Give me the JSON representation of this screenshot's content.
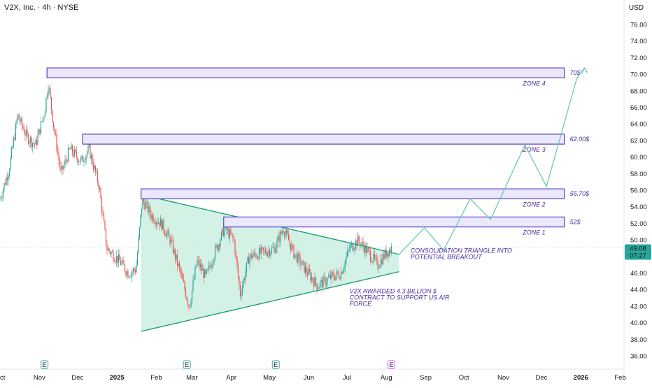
{
  "header": {
    "symbol": "V2X, Inc. · 4h · NYSE",
    "currency": "USD"
  },
  "price_label": {
    "price": "49.08",
    "countdown": "07:27",
    "color": "#26a69a"
  },
  "colors": {
    "up": "#26a69a",
    "down": "#ef5350",
    "zone_border": "#5b3fc4",
    "zone_fill": "#ece8fb",
    "triangle": "#1fa07a",
    "triangle_fill": "#cdeee2",
    "projection": "#6cc9b4"
  },
  "earnings_badges": [
    {
      "label": "E",
      "date": "2024-11-05",
      "color": "#26a69a"
    },
    {
      "label": "E",
      "date": "2025-02-25",
      "color": "#26a69a"
    },
    {
      "label": "E",
      "date": "2025-05-06",
      "color": "#26a69a"
    },
    {
      "label": "E",
      "date": "2025-08-05",
      "color": "#e040fb"
    }
  ],
  "chart_data": {
    "type": "candlestick",
    "x_axis": {
      "range": [
        "2024-10-01",
        "2026-02-04"
      ],
      "tick_labels": [
        {
          "date": "2024-10-01",
          "label": "Oct"
        },
        {
          "date": "2024-11-01",
          "label": "Nov"
        },
        {
          "date": "2024-12-01",
          "label": "Dec"
        },
        {
          "date": "2025-01-01",
          "label": "2025"
        },
        {
          "date": "2025-02-01",
          "label": "Feb"
        },
        {
          "date": "2025-03-01",
          "label": "Mar"
        },
        {
          "date": "2025-04-01",
          "label": "Apr"
        },
        {
          "date": "2025-05-01",
          "label": "May"
        },
        {
          "date": "2025-06-01",
          "label": "Jun"
        },
        {
          "date": "2025-07-01",
          "label": "Jul"
        },
        {
          "date": "2025-08-01",
          "label": "Aug"
        },
        {
          "date": "2025-09-01",
          "label": "Sep"
        },
        {
          "date": "2025-10-01",
          "label": "Oct"
        },
        {
          "date": "2025-11-01",
          "label": "Nov"
        },
        {
          "date": "2025-12-01",
          "label": "Dec"
        },
        {
          "date": "2026-01-01",
          "label": "2026"
        },
        {
          "date": "2026-02-01",
          "label": "Feb"
        }
      ]
    },
    "y_axis": {
      "range": [
        35,
        78
      ],
      "unit": "USD",
      "ticks": [
        "76.00",
        "74.00",
        "72.00",
        "70.00",
        "68.00",
        "66.00",
        "64.00",
        "62.00",
        "60.00",
        "58.00",
        "56.00",
        "54.00",
        "52.00",
        "50.00",
        "48.00",
        "46.00",
        "44.00",
        "42.00",
        "40.00",
        "38.00",
        "36.00"
      ]
    },
    "price_path": [
      {
        "date": "2024-10-01",
        "price": 55.0
      },
      {
        "date": "2024-10-08",
        "price": 58.5
      },
      {
        "date": "2024-10-15",
        "price": 65.0
      },
      {
        "date": "2024-10-22",
        "price": 62.5
      },
      {
        "date": "2024-10-29",
        "price": 61.5
      },
      {
        "date": "2024-11-05",
        "price": 65.5
      },
      {
        "date": "2024-11-08",
        "price": 69.0
      },
      {
        "date": "2024-11-12",
        "price": 64.0
      },
      {
        "date": "2024-11-18",
        "price": 58.0
      },
      {
        "date": "2024-11-25",
        "price": 61.0
      },
      {
        "date": "2024-12-04",
        "price": 59.5
      },
      {
        "date": "2024-12-10",
        "price": 61.0
      },
      {
        "date": "2024-12-18",
        "price": 56.5
      },
      {
        "date": "2024-12-24",
        "price": 49.0
      },
      {
        "date": "2025-01-03",
        "price": 47.5
      },
      {
        "date": "2025-01-10",
        "price": 46.0
      },
      {
        "date": "2025-01-16",
        "price": 46.5
      },
      {
        "date": "2025-01-21",
        "price": 55.0
      },
      {
        "date": "2025-01-28",
        "price": 53.0
      },
      {
        "date": "2025-02-05",
        "price": 52.0
      },
      {
        "date": "2025-02-12",
        "price": 50.0
      },
      {
        "date": "2025-02-20",
        "price": 46.0
      },
      {
        "date": "2025-02-27",
        "price": 42.0
      },
      {
        "date": "2025-03-05",
        "price": 47.5
      },
      {
        "date": "2025-03-12",
        "price": 45.5
      },
      {
        "date": "2025-03-20",
        "price": 49.0
      },
      {
        "date": "2025-03-27",
        "price": 51.5
      },
      {
        "date": "2025-04-03",
        "price": 50.0
      },
      {
        "date": "2025-04-08",
        "price": 43.5
      },
      {
        "date": "2025-04-15",
        "price": 48.0
      },
      {
        "date": "2025-04-25",
        "price": 48.5
      },
      {
        "date": "2025-05-05",
        "price": 49.0
      },
      {
        "date": "2025-05-12",
        "price": 51.5
      },
      {
        "date": "2025-05-20",
        "price": 48.5
      },
      {
        "date": "2025-05-29",
        "price": 46.5
      },
      {
        "date": "2025-06-08",
        "price": 44.5
      },
      {
        "date": "2025-06-18",
        "price": 45.5
      },
      {
        "date": "2025-06-26",
        "price": 46.0
      },
      {
        "date": "2025-07-03",
        "price": 49.0
      },
      {
        "date": "2025-07-10",
        "price": 50.0
      },
      {
        "date": "2025-07-18",
        "price": 48.5
      },
      {
        "date": "2025-07-25",
        "price": 47.0
      },
      {
        "date": "2025-08-01",
        "price": 48.5
      },
      {
        "date": "2025-08-05",
        "price": 49.08
      }
    ],
    "zones": [
      {
        "label": "ZONE 1",
        "price_label": "52$",
        "low": 51.6,
        "high": 52.8,
        "start": "2025-03-26",
        "end": "2025-12-19"
      },
      {
        "label": "ZONE 2",
        "price_label": "55.70$",
        "low": 55.0,
        "high": 56.2,
        "start": "2025-01-20",
        "end": "2025-12-19"
      },
      {
        "label": "ZONE 3",
        "price_label": "62.00$",
        "low": 61.6,
        "high": 62.8,
        "start": "2024-12-05",
        "end": "2025-12-19"
      },
      {
        "label": "ZONE 4",
        "price_label": "70$",
        "low": 69.6,
        "high": 70.8,
        "start": "2024-11-07",
        "end": "2025-12-19"
      }
    ],
    "triangle": {
      "upper_start": {
        "date": "2025-01-20",
        "price": 55.5
      },
      "lower_start": {
        "date": "2025-01-20",
        "price": 39.0
      },
      "upper_end": {
        "date": "2025-08-11",
        "price": 48.3
      },
      "lower_end": {
        "date": "2025-08-11",
        "price": 46.2
      }
    },
    "projection_path": [
      {
        "date": "2025-08-11",
        "price": 48.3
      },
      {
        "date": "2025-08-31",
        "price": 51.5
      },
      {
        "date": "2025-09-15",
        "price": 48.8
      },
      {
        "date": "2025-10-06",
        "price": 55.0
      },
      {
        "date": "2025-10-22",
        "price": 52.5
      },
      {
        "date": "2025-11-18",
        "price": 61.5
      },
      {
        "date": "2025-12-05",
        "price": 56.5
      },
      {
        "date": "2025-12-29",
        "price": 69.6
      },
      {
        "date": "2026-01-04",
        "price": 70.8
      }
    ],
    "annotations": [
      {
        "text": [
          "CONSOLIDATION TRIANGLE INTO",
          "POTENTIAL BREAKOUT"
        ],
        "date": "2025-08-20",
        "price": 48.5
      },
      {
        "text": [
          "V2X AWARDED 4.3 BILLION $",
          "CONTRACT TO SUPPORT US AIR",
          "FORCE"
        ],
        "date": "2025-07-03",
        "price": 43.6
      }
    ]
  }
}
